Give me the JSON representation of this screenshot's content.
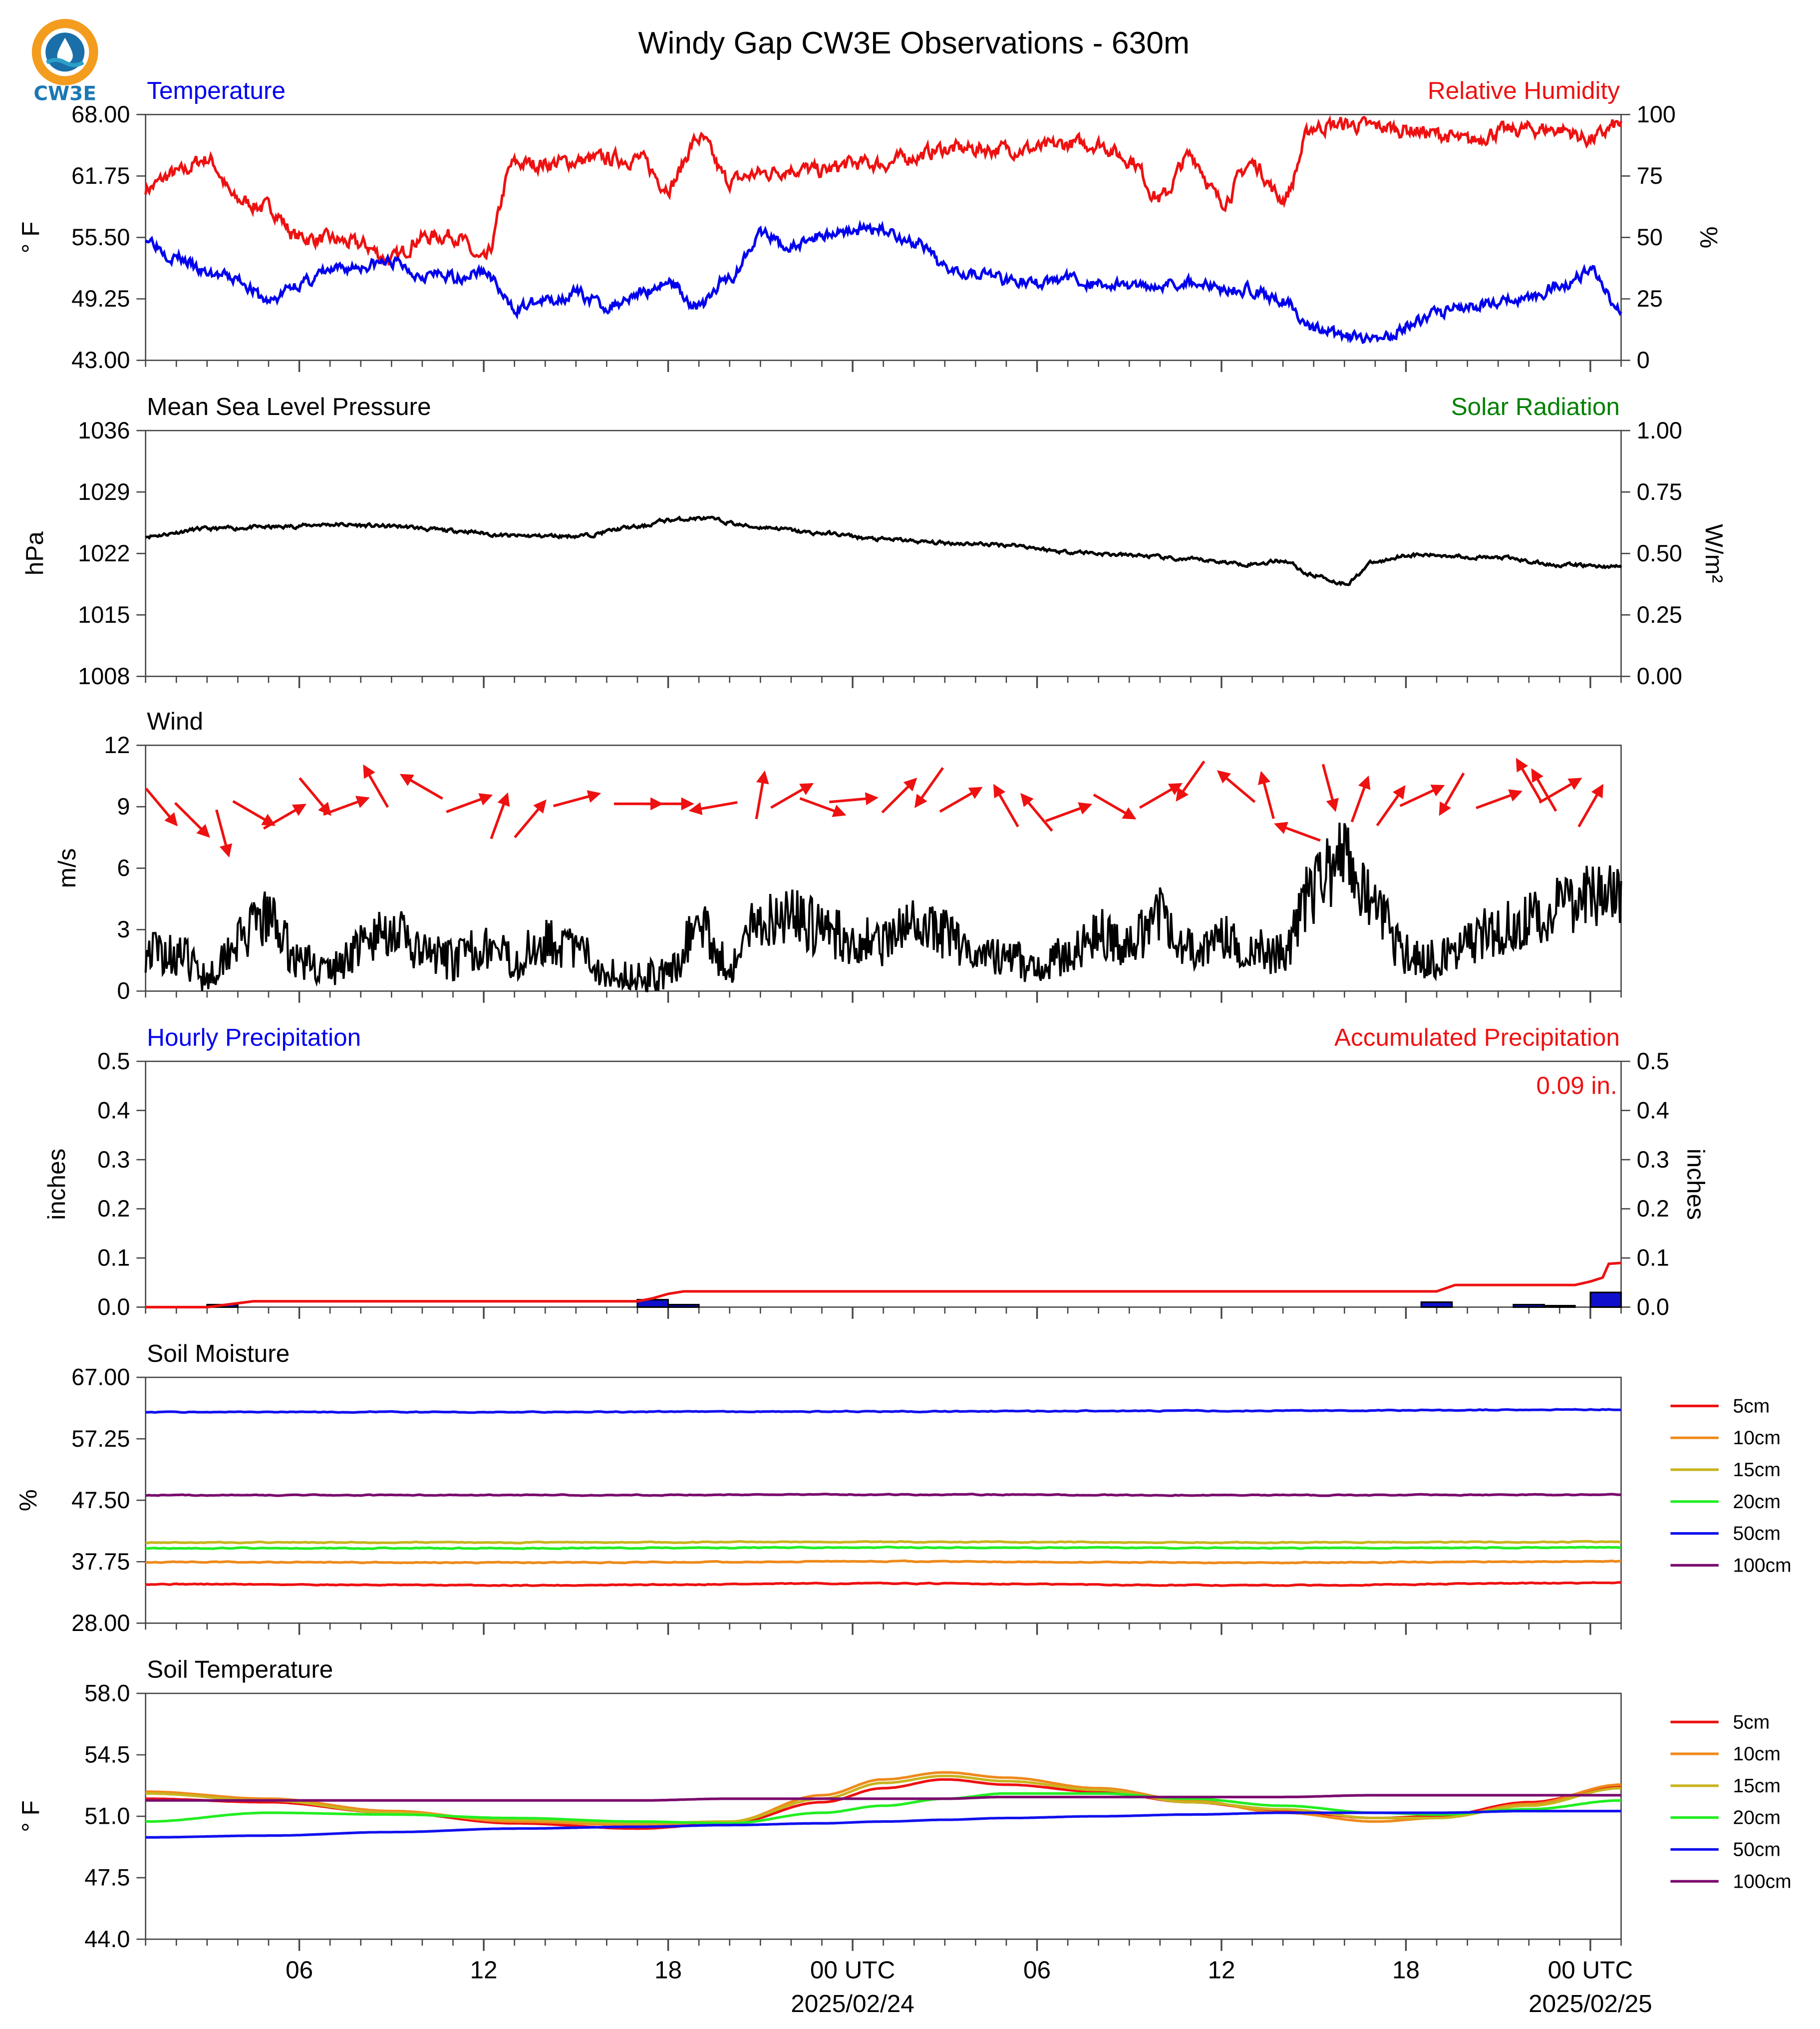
{
  "title": "Windy Gap CW3E Observations - 630m",
  "logo": {
    "text": "CW3E",
    "colors": {
      "ring": "#f39c1e",
      "drop": "#1b6fa8",
      "wave": "#2aa0c8"
    }
  },
  "x_axis": {
    "start": "2025-02-23 01:00",
    "end": "2025-02-25 01:00",
    "tick_labels": [
      {
        "label": "06",
        "hour": 6
      },
      {
        "label": "12",
        "hour": 12
      },
      {
        "label": "18",
        "hour": 18
      },
      {
        "label": "00 UTC",
        "hour": 24,
        "date": "2025/02/24"
      },
      {
        "label": "06",
        "hour": 30
      },
      {
        "label": "12",
        "hour": 36
      },
      {
        "label": "18",
        "hour": 42
      },
      {
        "label": "00 UTC",
        "hour": 48,
        "date": "2025/02/25"
      }
    ]
  },
  "legend": [
    "5cm",
    "10cm",
    "15cm",
    "20cm",
    "50cm",
    "100cm"
  ],
  "colors": {
    "temperature": "#0000ee",
    "humidity": "#ee1111",
    "solar": "#008000",
    "pressure": "#000000",
    "depths": [
      "#ee1111",
      "#ee8a1c",
      "#c8b41e",
      "#22ee22",
      "#1111ee",
      "#7a0a6e"
    ]
  },
  "panels": {
    "temperature": {
      "title_left": "Temperature",
      "title_right": "Relative Humidity",
      "ylabel_left": "° F",
      "ylabel_right": "%",
      "yticks_left": [
        "68.00",
        "61.75",
        "55.50",
        "49.25",
        "43.00"
      ],
      "yticks_right": [
        "100",
        "75",
        "50",
        "25",
        "0"
      ]
    },
    "pressure": {
      "title_left": "Mean Sea Level Pressure",
      "title_right": "Solar Radiation",
      "ylabel_left": "hPa",
      "ylabel_right": "W/m²",
      "yticks_left": [
        "1036",
        "1029",
        "1022",
        "1015",
        "1008"
      ],
      "yticks_right": [
        "1.00",
        "0.75",
        "0.50",
        "0.25",
        "0.00"
      ]
    },
    "wind": {
      "title_left": "Wind",
      "ylabel_left": "m/s",
      "yticks_left": [
        "12",
        "9",
        "6",
        "3",
        "0"
      ]
    },
    "precip": {
      "title_left": "Hourly Precipitation",
      "title_right": "Accumulated Precipitation",
      "ylabel_left": "inches",
      "ylabel_right": "inches",
      "yticks_left": [
        "0.5",
        "0.4",
        "0.3",
        "0.2",
        "0.1",
        "0.0"
      ],
      "yticks_right": [
        "0.5",
        "0.4",
        "0.3",
        "0.2",
        "0.1",
        "0.0"
      ],
      "total_label": "0.09 in."
    },
    "soil_moisture": {
      "title_left": "Soil Moisture",
      "ylabel_left": "%",
      "yticks_left": [
        "67.00",
        "57.25",
        "47.50",
        "37.75",
        "28.00"
      ]
    },
    "soil_temperature": {
      "title_left": "Soil Temperature",
      "ylabel_left": "° F",
      "yticks_left": [
        "58.0",
        "54.5",
        "51.0",
        "47.5",
        "44.0"
      ]
    }
  },
  "chart_data": [
    {
      "type": "line",
      "title": "Temperature",
      "ylabel": "° F",
      "ylim": [
        43,
        68
      ],
      "x_hours": [
        0,
        1,
        2,
        3,
        4,
        5,
        6,
        7,
        8,
        9,
        10,
        11,
        12,
        13,
        14,
        15,
        16,
        17,
        18,
        19,
        20,
        21,
        22,
        23,
        24,
        25,
        26,
        27,
        28,
        29,
        30,
        31,
        32,
        33,
        34,
        35,
        36,
        37,
        38,
        39,
        40,
        41,
        42,
        43,
        44,
        45,
        46,
        47,
        48
      ],
      "series": [
        {
          "name": "Temperature",
          "values": [
            55.5,
            53.5,
            51.8,
            51.2,
            49.0,
            50.8,
            52.0,
            52.6,
            53.0,
            51.8,
            51.5,
            52.0,
            48.3,
            49.0,
            49.8,
            48.5,
            49.8,
            51.0,
            48.5,
            51.5,
            55.8,
            54.5,
            55.8,
            56.3,
            56.3,
            55.0,
            52.6,
            52.0,
            51.3,
            50.8,
            51.3,
            50.8,
            50.6,
            50.8,
            51.0,
            50.3,
            50.2,
            49.0,
            46.3,
            45.3,
            44.8,
            46.5,
            47.8,
            48.5,
            49.0,
            49.3,
            50.7,
            52.0,
            48.2
          ]
        }
      ]
    },
    {
      "type": "line",
      "title": "Relative Humidity",
      "ylabel": "%",
      "ylim": [
        0,
        100
      ],
      "x_hours": [
        0,
        1,
        2,
        3,
        4,
        5,
        6,
        7,
        8,
        9,
        10,
        11,
        12,
        13,
        14,
        15,
        16,
        17,
        18,
        19,
        20,
        21,
        22,
        23,
        24,
        25,
        26,
        27,
        28,
        29,
        30,
        31,
        32,
        33,
        34,
        35,
        36,
        37,
        38,
        39,
        40,
        41,
        42,
        43,
        44,
        45,
        46,
        47,
        48
      ],
      "series": [
        {
          "name": "Relative Humidity",
          "values": [
            70,
            76,
            82,
            65,
            62,
            50,
            49,
            47,
            41,
            50,
            51,
            40,
            80,
            80,
            81,
            82,
            82,
            71,
            90,
            73,
            76,
            78,
            77,
            80,
            80,
            83,
            86,
            86,
            86,
            86,
            88,
            88,
            82,
            66,
            83,
            65,
            80,
            66,
            95,
            96,
            95,
            94,
            92,
            89,
            93,
            94,
            94,
            90,
            96
          ]
        }
      ]
    },
    {
      "type": "line",
      "title": "Mean Sea Level Pressure",
      "ylabel": "hPa",
      "ylim": [
        1008,
        1036
      ],
      "x_hours": [
        0,
        2,
        4,
        6,
        8,
        10,
        12,
        14,
        16,
        17,
        18,
        20,
        22,
        24,
        26,
        28,
        30,
        32,
        34,
        36,
        37,
        38,
        39,
        40,
        41,
        42,
        44,
        46,
        48
      ],
      "series": [
        {
          "name": "Mean Sea Level Pressure",
          "values": [
            1024.0,
            1024.8,
            1025.0,
            1025.3,
            1025.1,
            1024.6,
            1024.0,
            1024.0,
            1025.0,
            1025.8,
            1026.0,
            1025.0,
            1024.3,
            1023.6,
            1023.2,
            1023.0,
            1022.2,
            1021.8,
            1021.3,
            1020.8,
            1021.2,
            1019.5,
            1018.6,
            1021.0,
            1021.8,
            1021.8,
            1021.5,
            1020.7,
            1020.5
          ]
        }
      ]
    },
    {
      "type": "line",
      "title": "Wind",
      "ylabel": "m/s",
      "ylim": [
        0,
        12
      ],
      "x_hours": [
        0,
        1,
        2,
        3,
        4,
        5,
        6,
        7,
        8,
        9,
        10,
        11,
        12,
        13,
        14,
        15,
        16,
        17,
        18,
        19,
        20,
        21,
        22,
        23,
        24,
        25,
        26,
        27,
        28,
        29,
        30,
        31,
        32,
        33,
        34,
        35,
        36,
        37,
        38,
        39,
        40,
        41,
        42,
        43,
        44,
        45,
        46,
        47,
        48
      ],
      "series": [
        {
          "name": "Wind speed",
          "values": [
            2.0,
            1.8,
            0.8,
            2.5,
            3.5,
            1.5,
            1.0,
            2.2,
            3.0,
            1.8,
            1.5,
            2.2,
            1.5,
            2.5,
            2.0,
            1.0,
            0.7,
            0.8,
            3.2,
            1.2,
            3.5,
            3.8,
            3.0,
            2.5,
            2.4,
            3.2,
            2.8,
            2.0,
            1.6,
            1.2,
            1.8,
            2.8,
            2.2,
            3.8,
            2.0,
            2.5,
            2.0,
            1.8,
            5.0,
            6.5,
            4.0,
            1.8,
            1.5,
            2.5,
            3.0,
            3.5,
            4.2,
            4.5,
            4.5
          ]
        }
      ]
    },
    {
      "type": "bar",
      "title": "Hourly Precipitation",
      "ylabel": "inches",
      "ylim": [
        0,
        0.5
      ],
      "x_hours": [
        2.5,
        16.5,
        17.5,
        42,
        45,
        46,
        47.5
      ],
      "series": [
        {
          "name": "Hourly Precipitation",
          "values": [
            0.005,
            0.015,
            0.005,
            0.01,
            0.005,
            0.003,
            0.03
          ]
        }
      ]
    },
    {
      "type": "line",
      "title": "Accumulated Precipitation",
      "ylabel": "inches",
      "ylim": [
        0,
        0.5
      ],
      "x_hours": [
        0,
        2,
        3.5,
        16,
        16.5,
        17,
        17.5,
        42,
        42.6,
        46.5,
        47,
        47.4,
        47.6,
        48
      ],
      "series": [
        {
          "name": "Accumulated Precipitation",
          "values": [
            0,
            0,
            0.012,
            0.012,
            0.018,
            0.027,
            0.032,
            0.032,
            0.045,
            0.045,
            0.052,
            0.06,
            0.088,
            0.09
          ]
        }
      ]
    },
    {
      "type": "line",
      "title": "Soil Moisture",
      "ylabel": "%",
      "ylim": [
        28,
        67
      ],
      "x_hours": [
        0,
        12,
        24,
        36,
        48
      ],
      "series": [
        {
          "name": "5cm",
          "values": [
            34.2,
            34.0,
            34.3,
            34.0,
            34.4
          ]
        },
        {
          "name": "10cm",
          "values": [
            37.7,
            37.6,
            37.8,
            37.6,
            37.8
          ]
        },
        {
          "name": "15cm",
          "values": [
            40.8,
            40.8,
            40.9,
            40.8,
            40.9
          ]
        },
        {
          "name": "20cm",
          "values": [
            39.9,
            39.9,
            40.0,
            39.9,
            40.0
          ]
        },
        {
          "name": "50cm",
          "values": [
            61.5,
            61.5,
            61.6,
            61.7,
            61.9
          ]
        },
        {
          "name": "100cm",
          "values": [
            48.3,
            48.3,
            48.4,
            48.3,
            48.4
          ]
        }
      ]
    },
    {
      "type": "line",
      "title": "Soil Temperature",
      "ylabel": "° F",
      "ylim": [
        44,
        58
      ],
      "x_hours": [
        0,
        4,
        8,
        12,
        16,
        19,
        22,
        24,
        26,
        28,
        31,
        34,
        37,
        40,
        42,
        45,
        48
      ],
      "series": [
        {
          "name": "5cm",
          "values": [
            52.0,
            51.8,
            51.2,
            50.6,
            50.3,
            50.6,
            51.8,
            52.6,
            53.1,
            52.8,
            52.4,
            51.8,
            51.3,
            50.9,
            51.0,
            51.8,
            52.7
          ]
        },
        {
          "name": "10cm",
          "values": [
            52.4,
            52.0,
            51.3,
            50.7,
            50.5,
            50.7,
            52.2,
            53.1,
            53.5,
            53.2,
            52.6,
            51.9,
            51.2,
            50.7,
            50.9,
            51.7,
            52.8
          ]
        },
        {
          "name": "15cm",
          "values": [
            52.3,
            51.9,
            51.2,
            50.8,
            50.6,
            50.7,
            52.0,
            52.9,
            53.3,
            53.0,
            52.5,
            51.8,
            51.4,
            50.9,
            50.9,
            51.6,
            52.6
          ]
        },
        {
          "name": "20cm",
          "values": [
            50.7,
            51.2,
            51.1,
            50.9,
            50.7,
            50.6,
            51.2,
            51.6,
            52.0,
            52.3,
            52.3,
            52.0,
            51.6,
            51.2,
            51.1,
            51.4,
            51.9
          ]
        },
        {
          "name": "50cm",
          "values": [
            49.8,
            49.9,
            50.1,
            50.3,
            50.4,
            50.5,
            50.6,
            50.7,
            50.8,
            50.9,
            51.0,
            51.1,
            51.2,
            51.2,
            51.2,
            51.3,
            51.3
          ]
        },
        {
          "name": "100cm",
          "values": [
            51.9,
            51.9,
            51.9,
            51.9,
            51.9,
            52.0,
            52.0,
            52.0,
            52.0,
            52.1,
            52.1,
            52.1,
            52.1,
            52.2,
            52.2,
            52.2,
            52.2
          ]
        }
      ]
    },
    {
      "type": "scatter",
      "title": "Wind direction",
      "x_hours": [
        0.5,
        1.5,
        2.5,
        3.5,
        4.5,
        5.5,
        6.5,
        7.5,
        9.0,
        10.5,
        11.5,
        12.5,
        14.0,
        16.0,
        17.0,
        18.5,
        20.0,
        21.0,
        22.0,
        23.0,
        24.5,
        25.5,
        26.5,
        28.0,
        29.0,
        30.0,
        31.5,
        33.0,
        34.0,
        35.5,
        36.5,
        37.5,
        38.5,
        39.5,
        40.5,
        41.5,
        42.5,
        44.0,
        45.0,
        45.5,
        46.0,
        47.0
      ],
      "direction_deg": [
        320,
        315,
        345,
        300,
        240,
        320,
        250,
        150,
        120,
        250,
        200,
        220,
        255,
        270,
        270,
        80,
        190,
        240,
        290,
        265,
        225,
        35,
        240,
        150,
        140,
        250,
        300,
        240,
        35,
        130,
        165,
        110,
        345,
        200,
        215,
        245,
        30,
        250,
        150,
        150,
        240,
        210
      ],
      "speed_ms": [
        3,
        2,
        2,
        2,
        2,
        2,
        2,
        2,
        1,
        1,
        1,
        1,
        1,
        1,
        1,
        1,
        3,
        2,
        2,
        2,
        2,
        2,
        2,
        2,
        2,
        2,
        2,
        2,
        2,
        2,
        1,
        1,
        2,
        5,
        5,
        2,
        2,
        2,
        3,
        3,
        4,
        4
      ]
    }
  ]
}
